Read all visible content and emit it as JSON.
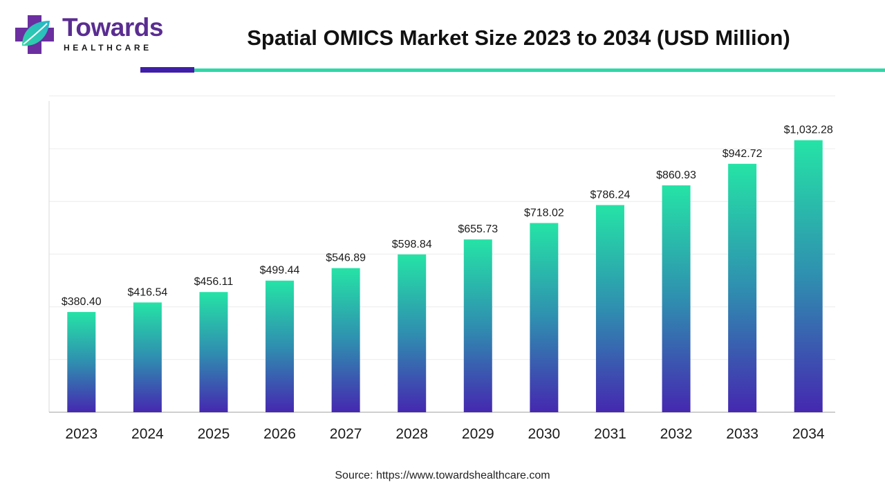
{
  "header": {
    "logo_word": "Towards",
    "logo_sub": "HEALTHCARE",
    "title": "Spatial OMICS Market Size 2023 to 2034 (USD Million)"
  },
  "colors": {
    "brand_purple": "#5a2d91",
    "rule_dark": "#3f1fa8",
    "rule_teal": "#2ed8a8",
    "bar_top": "#25e3a6",
    "bar_mid": "#2f8fb0",
    "bar_bottom": "#4528b0"
  },
  "chart_data": {
    "type": "bar",
    "title": "Spatial OMICS Market Size 2023 to 2034 (USD Million)",
    "categories": [
      "2023",
      "2024",
      "2025",
      "2026",
      "2027",
      "2028",
      "2029",
      "2030",
      "2031",
      "2032",
      "2033",
      "2034"
    ],
    "values": [
      380.4,
      416.54,
      456.11,
      499.44,
      546.89,
      598.84,
      655.73,
      718.02,
      786.24,
      860.93,
      942.72,
      1032.28
    ],
    "labels": [
      "$380.40",
      "$416.54",
      "$456.11",
      "$499.44",
      "$546.89",
      "$598.84",
      "$655.73",
      "$718.02",
      "$786.24",
      "$860.93",
      "$942.72",
      "$1,032.28"
    ],
    "xlabel": "",
    "ylabel": "",
    "ylim": [
      0,
      1200
    ],
    "grid": true,
    "legend": "none"
  },
  "footer": {
    "source": "Source: https://www.towardshealthcare.com"
  }
}
